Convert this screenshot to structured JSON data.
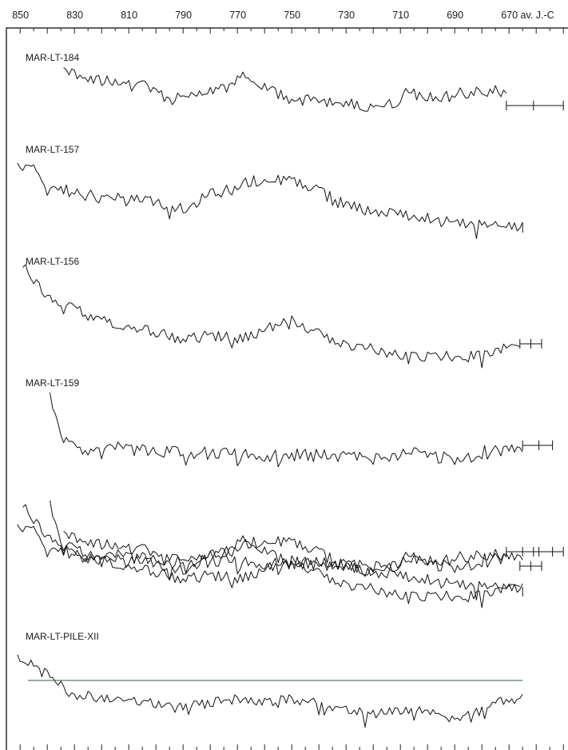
{
  "chart_data": {
    "type": "line",
    "x_axis": {
      "label": "av. J.-C",
      "tick_labels": [
        "850",
        "830",
        "810",
        "790",
        "770",
        "750",
        "730",
        "710",
        "690",
        "670 av. J.-C"
      ],
      "xlim": [
        853,
        650
      ],
      "reversed": true,
      "minor_tick_step": 5
    },
    "panels": [
      {
        "label": "MAR-LT-184",
        "start": 834,
        "end": 671,
        "extension_end": 650,
        "extension_ticks": [
          671,
          661,
          650
        ]
      },
      {
        "label": "MAR-LT-157",
        "start": 851,
        "end": 665,
        "extension_end": 665,
        "extension_ticks": [
          665
        ]
      },
      {
        "label": "MAR-LT-156",
        "start": 849,
        "end": 666,
        "extension_end": 658,
        "extension_ticks": [
          666,
          662,
          658
        ]
      },
      {
        "label": "MAR-LT-159",
        "start": 839,
        "end": 665,
        "extension_end": 654,
        "extension_ticks": [
          665,
          659,
          654
        ]
      },
      {
        "label": "",
        "superimposed": [
          "MAR-LT-184",
          "MAR-LT-157",
          "MAR-LT-156",
          "MAR-LT-159"
        ]
      },
      {
        "label": "MAR-LT-PILE-XII",
        "start": 851,
        "end": 665,
        "mean_line": true
      }
    ],
    "colors": {
      "curve": "#111111",
      "mean_line": "#2f5f3a"
    },
    "grid": false
  }
}
